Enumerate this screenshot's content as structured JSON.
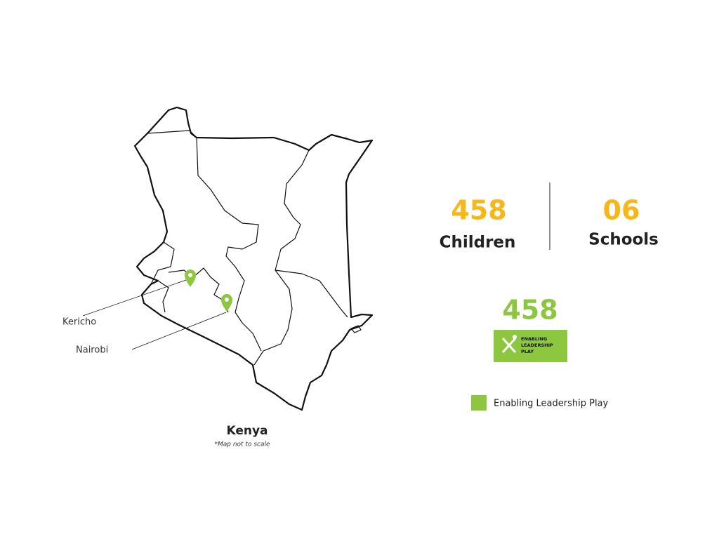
{
  "map": {
    "country": "Kenya",
    "note": "*Map not to scale",
    "places": [
      "Kericho",
      "Nairobi"
    ]
  },
  "stats": [
    {
      "number": "458",
      "label": "Children"
    },
    {
      "number": "06",
      "label": "Schools"
    }
  ],
  "program": {
    "number": "458",
    "logo": [
      "ENABLING",
      "LEADERSHIP",
      "PLAY"
    ]
  },
  "legend": {
    "label": "Enabling Leadership Play"
  }
}
